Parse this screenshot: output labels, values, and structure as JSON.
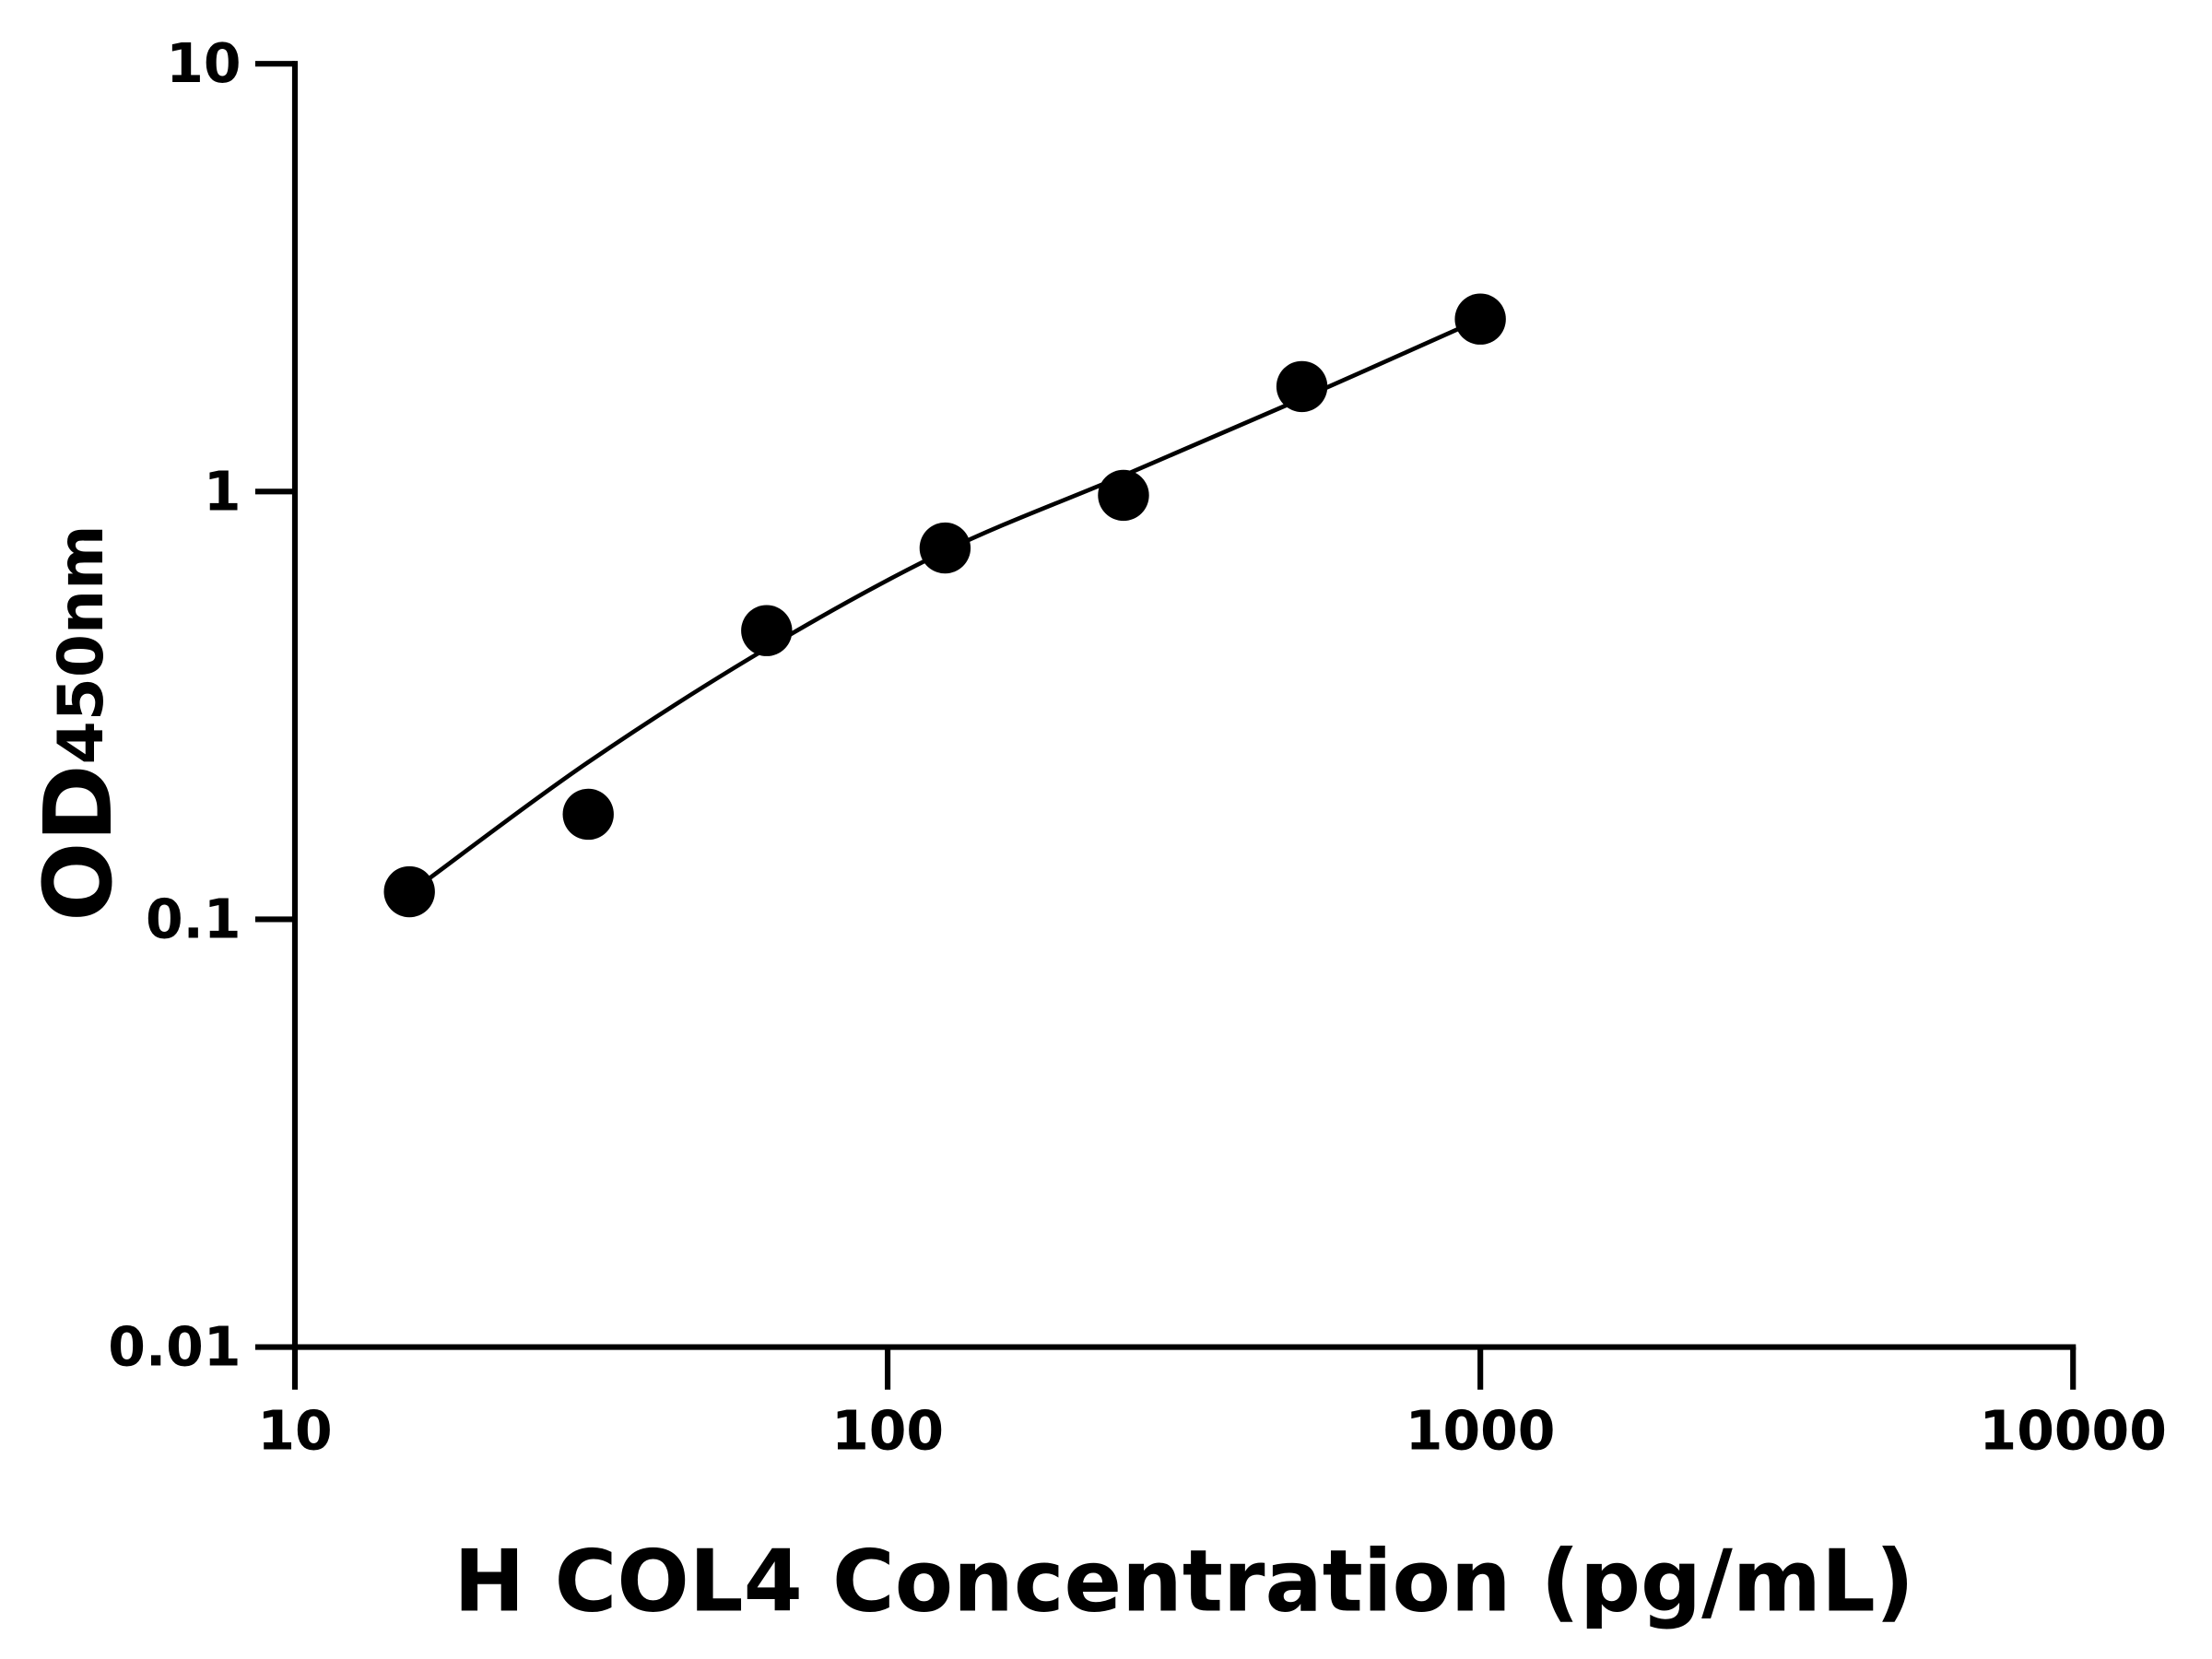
{
  "chart_data": {
    "type": "scatter",
    "title": "",
    "xlabel": "H COL4 Concentration (pg/mL)",
    "ylabel_main": "OD",
    "ylabel_sub": "450nm",
    "x_scale": "log",
    "y_scale": "log",
    "xlim": [
      10,
      10000
    ],
    "ylim": [
      0.01,
      10
    ],
    "x_ticks": [
      10,
      100,
      1000,
      10000
    ],
    "x_tick_labels": [
      "10",
      "100",
      "1000",
      "10000"
    ],
    "y_ticks": [
      0.01,
      0.1,
      1,
      10
    ],
    "y_tick_labels": [
      "0.01",
      "0.1",
      "1",
      "10"
    ],
    "grid": false,
    "legend": "none",
    "series": [
      {
        "x": [
          15.6,
          31.25,
          62.5,
          125,
          250,
          500,
          1000
        ],
        "y": [
          0.116,
          0.176,
          0.473,
          0.738,
          0.98,
          1.76,
          2.53
        ],
        "marker": "circle",
        "color": "#000000"
      }
    ],
    "fit_curve": {
      "x": [
        16.9,
        31.25,
        62.5,
        125,
        250,
        500,
        1000
      ],
      "y": [
        0.125,
        0.233,
        0.43,
        0.726,
        1.09,
        1.65,
        2.53
      ],
      "color": "#000000"
    }
  }
}
